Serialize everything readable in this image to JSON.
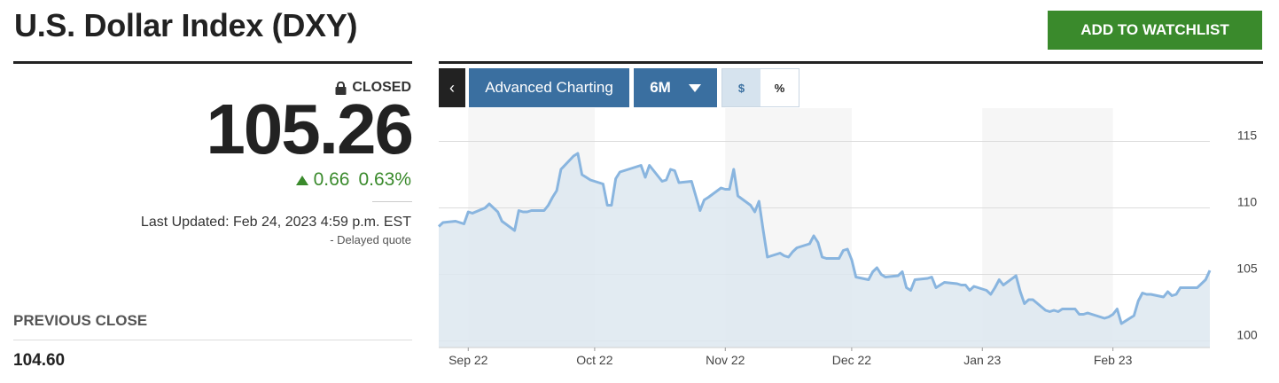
{
  "header": {
    "title": "U.S. Dollar Index (DXY)",
    "watchlist_label": "ADD TO WATCHLIST"
  },
  "quote": {
    "status": "CLOSED",
    "price": "105.26",
    "change": "0.66",
    "change_pct": "0.63%",
    "last_updated": "Last Updated: Feb 24, 2023 4:59 p.m. EST",
    "delayed": "-  Delayed quote",
    "previous_close_label": "PREVIOUS CLOSE",
    "previous_close_value": "104.60"
  },
  "toolbar": {
    "back_label": "‹",
    "advanced_label": "Advanced Charting",
    "range_label": "6M",
    "dollar_label": "$",
    "percent_label": "%"
  },
  "colors": {
    "accent_green": "#3a8a2c",
    "toolbar_blue": "#3a6fa0",
    "line": "#89b5df",
    "fill": "#dde8f0"
  },
  "chart_data": {
    "type": "area",
    "title": "",
    "xlabel": "",
    "ylabel": "",
    "ylim": [
      99.5,
      115.5
    ],
    "yticks": [
      100,
      105,
      110,
      115
    ],
    "x_tick_labels": [
      {
        "label": "Sep 22",
        "date": "2022-09-01"
      },
      {
        "label": "Oct 22",
        "date": "2022-10-01"
      },
      {
        "label": "Nov 22",
        "date": "2022-11-01"
      },
      {
        "label": "Dec 22",
        "date": "2022-12-01"
      },
      {
        "label": "Jan 23",
        "date": "2023-01-01"
      },
      {
        "label": "Feb 23",
        "date": "2023-02-01"
      }
    ],
    "x_range": [
      "2022-08-25",
      "2023-02-24"
    ],
    "grid": true,
    "alternating_month_bands": true,
    "series": [
      {
        "points": [
          [
            "2022-08-25",
            108.6
          ],
          [
            "2022-08-26",
            108.9
          ],
          [
            "2022-08-29",
            109.0
          ],
          [
            "2022-08-30",
            108.9
          ],
          [
            "2022-08-31",
            108.8
          ],
          [
            "2022-09-01",
            109.7
          ],
          [
            "2022-09-02",
            109.6
          ],
          [
            "2022-09-05",
            110.0
          ],
          [
            "2022-09-06",
            110.3
          ],
          [
            "2022-09-07",
            110.0
          ],
          [
            "2022-09-08",
            109.7
          ],
          [
            "2022-09-09",
            109.0
          ],
          [
            "2022-09-12",
            108.3
          ],
          [
            "2022-09-13",
            109.8
          ],
          [
            "2022-09-14",
            109.7
          ],
          [
            "2022-09-15",
            109.7
          ],
          [
            "2022-09-16",
            109.8
          ],
          [
            "2022-09-19",
            109.8
          ],
          [
            "2022-09-20",
            110.2
          ],
          [
            "2022-09-21",
            110.8
          ],
          [
            "2022-09-22",
            111.3
          ],
          [
            "2022-09-23",
            112.9
          ],
          [
            "2022-09-26",
            113.9
          ],
          [
            "2022-09-27",
            114.1
          ],
          [
            "2022-09-28",
            112.5
          ],
          [
            "2022-09-29",
            112.3
          ],
          [
            "2022-09-30",
            112.1
          ],
          [
            "2022-10-03",
            111.8
          ],
          [
            "2022-10-04",
            110.2
          ],
          [
            "2022-10-05",
            110.2
          ],
          [
            "2022-10-06",
            112.2
          ],
          [
            "2022-10-07",
            112.7
          ],
          [
            "2022-10-10",
            113.0
          ],
          [
            "2022-10-11",
            113.1
          ],
          [
            "2022-10-12",
            113.2
          ],
          [
            "2022-10-13",
            112.3
          ],
          [
            "2022-10-14",
            113.2
          ],
          [
            "2022-10-17",
            112.0
          ],
          [
            "2022-10-18",
            112.1
          ],
          [
            "2022-10-19",
            112.9
          ],
          [
            "2022-10-20",
            112.8
          ],
          [
            "2022-10-21",
            111.9
          ],
          [
            "2022-10-24",
            112.0
          ],
          [
            "2022-10-25",
            110.9
          ],
          [
            "2022-10-26",
            109.8
          ],
          [
            "2022-10-27",
            110.6
          ],
          [
            "2022-10-28",
            110.8
          ],
          [
            "2022-10-31",
            111.5
          ],
          [
            "2022-11-01",
            111.4
          ],
          [
            "2022-11-02",
            111.4
          ],
          [
            "2022-11-03",
            112.9
          ],
          [
            "2022-11-04",
            110.9
          ],
          [
            "2022-11-07",
            110.2
          ],
          [
            "2022-11-08",
            109.7
          ],
          [
            "2022-11-09",
            110.5
          ],
          [
            "2022-11-10",
            108.3
          ],
          [
            "2022-11-11",
            106.3
          ],
          [
            "2022-11-14",
            106.6
          ],
          [
            "2022-11-15",
            106.4
          ],
          [
            "2022-11-16",
            106.3
          ],
          [
            "2022-11-17",
            106.7
          ],
          [
            "2022-11-18",
            107.0
          ],
          [
            "2022-11-21",
            107.3
          ],
          [
            "2022-11-22",
            107.9
          ],
          [
            "2022-11-23",
            107.4
          ],
          [
            "2022-11-24",
            106.3
          ],
          [
            "2022-11-25",
            106.2
          ],
          [
            "2022-11-28",
            106.2
          ],
          [
            "2022-11-29",
            106.8
          ],
          [
            "2022-11-30",
            106.9
          ],
          [
            "2022-12-01",
            106.1
          ],
          [
            "2022-12-02",
            104.8
          ],
          [
            "2022-12-05",
            104.6
          ],
          [
            "2022-12-06",
            105.2
          ],
          [
            "2022-12-07",
            105.5
          ],
          [
            "2022-12-08",
            105.0
          ],
          [
            "2022-12-09",
            104.8
          ],
          [
            "2022-12-12",
            104.9
          ],
          [
            "2022-12-13",
            105.2
          ],
          [
            "2022-12-14",
            104.0
          ],
          [
            "2022-12-15",
            103.8
          ],
          [
            "2022-12-16",
            104.6
          ],
          [
            "2022-12-19",
            104.7
          ],
          [
            "2022-12-20",
            104.8
          ],
          [
            "2022-12-21",
            104.0
          ],
          [
            "2022-12-22",
            104.2
          ],
          [
            "2022-12-23",
            104.4
          ],
          [
            "2022-12-26",
            104.3
          ],
          [
            "2022-12-27",
            104.2
          ],
          [
            "2022-12-28",
            104.2
          ],
          [
            "2022-12-29",
            103.8
          ],
          [
            "2022-12-30",
            104.1
          ],
          [
            "2023-01-02",
            103.8
          ],
          [
            "2023-01-03",
            103.5
          ],
          [
            "2023-01-04",
            104.0
          ],
          [
            "2023-01-05",
            104.6
          ],
          [
            "2023-01-06",
            104.2
          ],
          [
            "2023-01-09",
            104.9
          ],
          [
            "2023-01-10",
            103.7
          ],
          [
            "2023-01-11",
            102.8
          ],
          [
            "2023-01-12",
            103.1
          ],
          [
            "2023-01-13",
            103.1
          ],
          [
            "2023-01-16",
            102.3
          ],
          [
            "2023-01-17",
            102.2
          ],
          [
            "2023-01-18",
            102.3
          ],
          [
            "2023-01-19",
            102.2
          ],
          [
            "2023-01-20",
            102.4
          ],
          [
            "2023-01-23",
            102.4
          ],
          [
            "2023-01-24",
            102.0
          ],
          [
            "2023-01-25",
            102.0
          ],
          [
            "2023-01-26",
            102.1
          ],
          [
            "2023-01-27",
            102.0
          ],
          [
            "2023-01-30",
            101.7
          ],
          [
            "2023-01-31",
            101.8
          ],
          [
            "2023-02-01",
            102.0
          ],
          [
            "2023-02-02",
            102.4
          ],
          [
            "2023-02-03",
            101.3
          ],
          [
            "2023-02-06",
            101.9
          ],
          [
            "2023-02-07",
            103.0
          ],
          [
            "2023-02-08",
            103.6
          ],
          [
            "2023-02-09",
            103.5
          ],
          [
            "2023-02-10",
            103.5
          ],
          [
            "2023-02-13",
            103.3
          ],
          [
            "2023-02-14",
            103.7
          ],
          [
            "2023-02-15",
            103.4
          ],
          [
            "2023-02-16",
            103.5
          ],
          [
            "2023-02-17",
            104.0
          ],
          [
            "2023-02-20",
            104.0
          ],
          [
            "2023-02-21",
            104.0
          ],
          [
            "2023-02-22",
            104.3
          ],
          [
            "2023-02-23",
            104.6
          ],
          [
            "2023-02-24",
            105.3
          ]
        ]
      }
    ]
  }
}
